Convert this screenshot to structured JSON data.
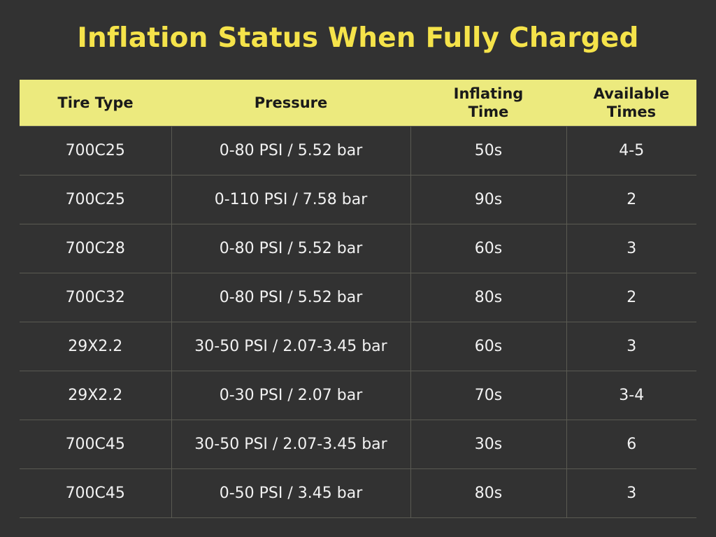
{
  "title": "Inflation Status When Fully Charged",
  "colors": {
    "background": "#323232",
    "title": "#f5e34a",
    "header_bg": "#ecea7e",
    "cell_text": "#f2f2f2",
    "grid_line": "#5a5a52"
  },
  "table": {
    "headers": {
      "tire_type": "Tire Type",
      "pressure": "Pressure",
      "inflating_time_line1": "Inflating",
      "inflating_time_line2": "Time",
      "available_times_line1": "Available",
      "available_times_line2": "Times"
    },
    "rows": [
      {
        "tire_type": "700C25",
        "pressure": "0-80 PSI / 5.52 bar",
        "inflating_time": "50s",
        "available_times": "4-5"
      },
      {
        "tire_type": "700C25",
        "pressure": "0-110 PSI / 7.58 bar",
        "inflating_time": "90s",
        "available_times": "2"
      },
      {
        "tire_type": "700C28",
        "pressure": "0-80 PSI / 5.52 bar",
        "inflating_time": "60s",
        "available_times": "3"
      },
      {
        "tire_type": "700C32",
        "pressure": "0-80 PSI / 5.52 bar",
        "inflating_time": "80s",
        "available_times": "2"
      },
      {
        "tire_type": "29X2.2",
        "pressure": "30-50 PSI / 2.07-3.45 bar",
        "inflating_time": "60s",
        "available_times": "3"
      },
      {
        "tire_type": "29X2.2",
        "pressure": "0-30 PSI / 2.07 bar",
        "inflating_time": "70s",
        "available_times": "3-4"
      },
      {
        "tire_type": "700C45",
        "pressure": "30-50 PSI / 2.07-3.45 bar",
        "inflating_time": "30s",
        "available_times": "6"
      },
      {
        "tire_type": "700C45",
        "pressure": "0-50 PSI / 3.45 bar",
        "inflating_time": "80s",
        "available_times": "3"
      }
    ]
  }
}
